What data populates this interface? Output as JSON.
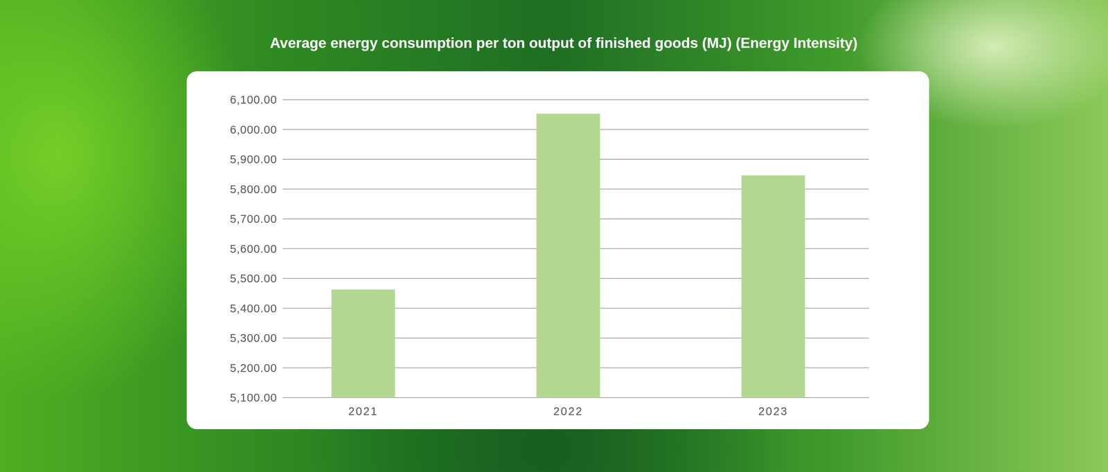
{
  "chart_data": {
    "type": "bar",
    "title": "Average energy consumption per ton output of finished goods (MJ) (Energy Intensity)",
    "categories": [
      "2021",
      "2022",
      "2023"
    ],
    "values": [
      5463,
      6053,
      5846
    ],
    "color": "#b3d891",
    "ylim": [
      5100,
      6100
    ],
    "yticks": [
      {
        "value": 5100,
        "label": "5,100.00"
      },
      {
        "value": 5200,
        "label": "5,200.00"
      },
      {
        "value": 5300,
        "label": "5,300.00"
      },
      {
        "value": 5400,
        "label": "5,400.00"
      },
      {
        "value": 5500,
        "label": "5,500.00"
      },
      {
        "value": 5600,
        "label": "5,600.00"
      },
      {
        "value": 5700,
        "label": "5,700.00"
      },
      {
        "value": 5800,
        "label": "5,800.00"
      },
      {
        "value": 5900,
        "label": "5,900.00"
      },
      {
        "value": 6000,
        "label": "6,000.00"
      },
      {
        "value": 6100,
        "label": "6,100.00"
      }
    ],
    "grid": true
  }
}
